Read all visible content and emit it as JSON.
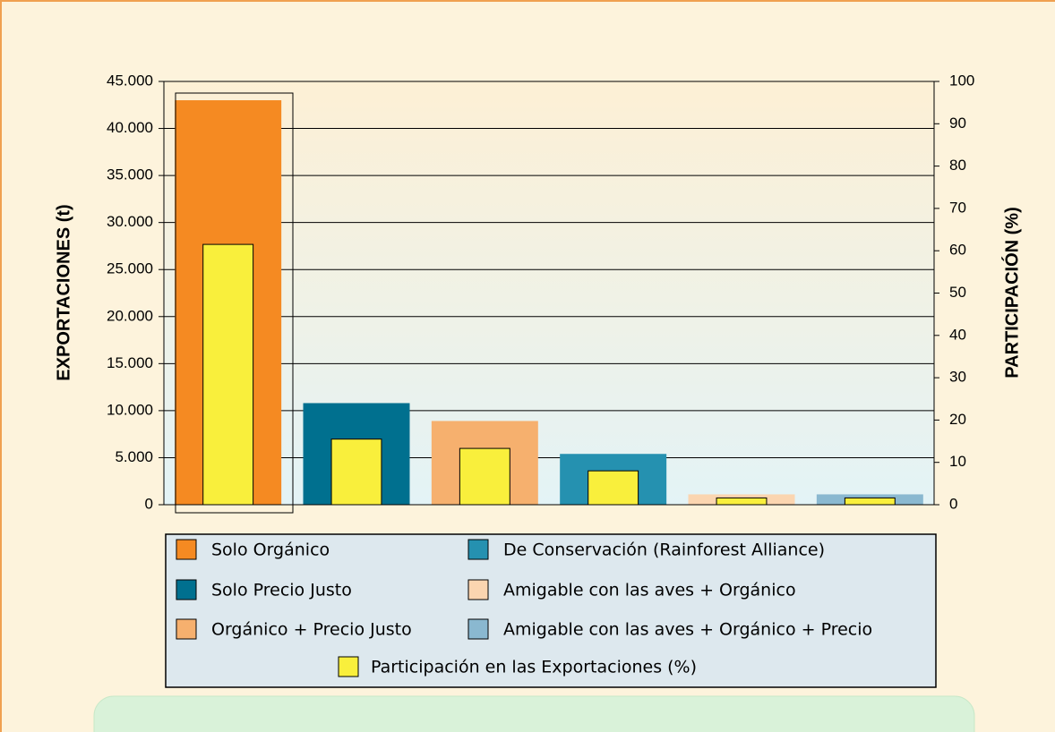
{
  "chart_data": {
    "type": "bar",
    "y_label": "EXPORTACIONES (t)",
    "y2_label": "PARTICIPACIÓN (%)",
    "categories": [
      "Solo Orgánico",
      "Solo Precio Justo",
      "Orgánico + Precio Justo",
      "De Conservación (Rainforest Alliance)",
      "Amigable con las aves + Orgánico",
      "Amigable con las aves + Orgánico + Precio"
    ],
    "values": [
      43000,
      10800,
      8900,
      5400,
      1100,
      1100
    ],
    "colors": [
      "#f58a22",
      "#00708f",
      "#f6b06e",
      "#2591b0",
      "#fbd5b0",
      "#8ab8d0"
    ],
    "series": [
      {
        "name": "Participación en las Exportaciones (%)",
        "color": "#f9ef3c",
        "values": [
          61.5,
          15.5,
          13.3,
          8.0,
          1.6,
          1.6
        ],
        "axis": "y2"
      }
    ],
    "ylim": [
      0,
      45000
    ],
    "yticks": [
      0,
      {
        "value": 5000,
        "label": "5.000"
      },
      {
        "value": 10000,
        "label": "10.000"
      },
      {
        "value": 15000,
        "label": "15.000"
      },
      {
        "value": 20000,
        "label": "20.000"
      },
      {
        "value": 25000,
        "label": "25.000"
      },
      {
        "value": 30000,
        "label": "30.000"
      },
      {
        "value": 35000,
        "label": "35.000"
      },
      {
        "value": 40000,
        "label": "40.000"
      },
      {
        "value": 45000,
        "label": "45.000"
      }
    ],
    "y2lim": [
      0,
      100
    ],
    "y2ticks": [
      0,
      10,
      20,
      30,
      40,
      50,
      60,
      70,
      80,
      90,
      100
    ],
    "grid": true
  }
}
